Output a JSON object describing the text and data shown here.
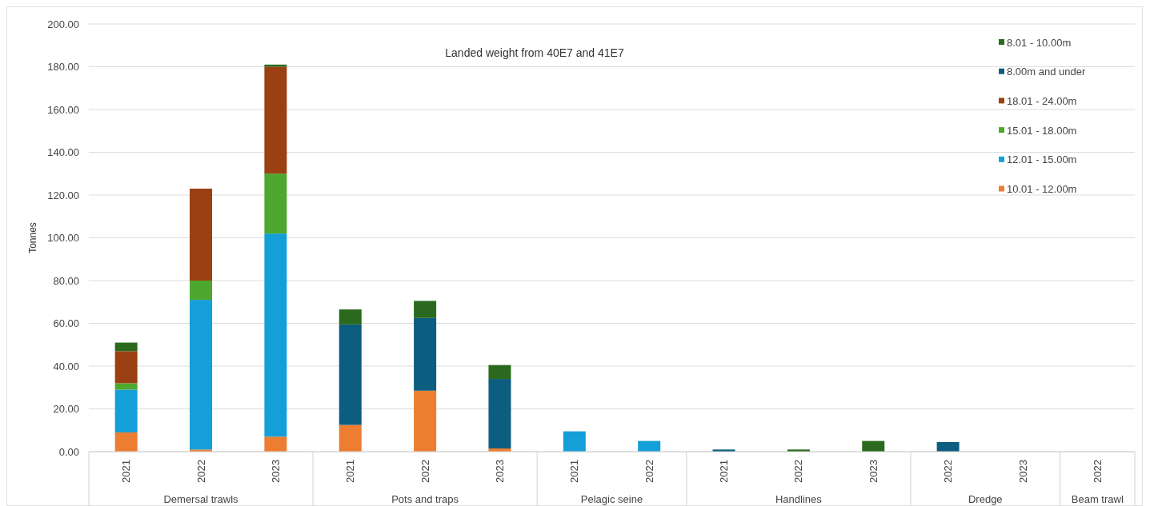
{
  "chart_data": {
    "type": "bar",
    "stacked": true,
    "title": "Landed weight from 40E7 and 41E7",
    "ylabel": "Tonnes",
    "categories": [
      "2021",
      "2022",
      "2023",
      "2021",
      "2022",
      "2023",
      "2021",
      "2022",
      "2021",
      "2022",
      "2023",
      "2022",
      "2023",
      "2022"
    ],
    "annotations": [
      "Demersal trawls",
      "Pots and traps",
      "Pelagic seine",
      "Handlines",
      "Dredge",
      "Beam trawl"
    ],
    "series": [
      {
        "name": "10.01 - 12.00m",
        "color": "#ed7d31",
        "values": [
          9,
          1,
          7,
          12.5,
          28.5,
          1.5,
          null,
          null,
          null,
          null,
          null,
          null,
          null,
          null
        ]
      },
      {
        "name": "12.01 - 15.00m",
        "color": "#159fd8",
        "values": [
          20,
          70,
          95,
          null,
          null,
          null,
          9.5,
          5,
          null,
          null,
          null,
          null,
          null,
          null
        ]
      },
      {
        "name": "15.01 - 18.00m",
        "color": "#4ea72e",
        "values": [
          3,
          9,
          28,
          null,
          null,
          null,
          null,
          null,
          null,
          null,
          null,
          null,
          null,
          null
        ]
      },
      {
        "name": "18.01 - 24.00m",
        "color": "#9a4012",
        "values": [
          15,
          43,
          50,
          null,
          null,
          null,
          null,
          null,
          null,
          null,
          null,
          null,
          null,
          null
        ]
      },
      {
        "name": "8.00m and under",
        "color": "#0d5d80",
        "values": [
          null,
          null,
          null,
          47,
          34,
          32.5,
          null,
          null,
          1,
          null,
          null,
          4.5,
          null,
          null
        ]
      },
      {
        "name": "8.01 - 10.00m",
        "color": "#2b6a1e",
        "values": [
          4,
          null,
          1,
          7,
          8,
          6.5,
          null,
          null,
          null,
          1,
          5,
          null,
          null,
          null
        ]
      }
    ],
    "ylim": [
      0,
      200
    ],
    "yticks": [
      {
        "value": 0,
        "label": "0.00"
      },
      {
        "value": 20,
        "label": "20.00"
      },
      {
        "value": 40,
        "label": "40.00"
      },
      {
        "value": 60,
        "label": "60.00"
      },
      {
        "value": 80,
        "label": "80.00"
      },
      {
        "value": 100,
        "label": "100.00"
      },
      {
        "value": 120,
        "label": "120.00"
      },
      {
        "value": 140,
        "label": "140.00"
      },
      {
        "value": 160,
        "label": "160.00"
      },
      {
        "value": 180,
        "label": "180.00"
      },
      {
        "value": 200,
        "label": "200.00"
      }
    ],
    "grid": "y",
    "legend": "top right"
  }
}
